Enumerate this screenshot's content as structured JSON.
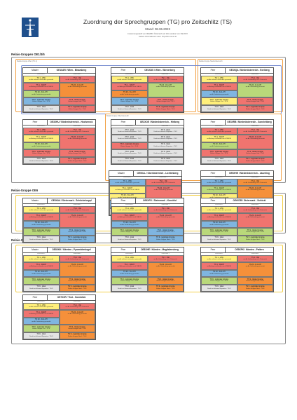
{
  "header": {
    "title": "Zuordnung der Sprechgruppen (TG) pro Zeitschlitz (TS)",
    "stand": "Stand: 08.06.2023",
    "note1": "zusammengestellt von OE6ABC Österreich auf Infos anderer von OE1XXX",
    "note2": "weitere Informationen unter: http://dmr.oevsv.at"
  },
  "colors": {
    "red": "#f0746f",
    "yellow": "#ffef7a",
    "blue": "#7fb5e0",
    "green": "#b9d87a",
    "orange": "#f5903a",
    "grey": "#e3e3e3",
    "frame_grey": "#9a9a9a",
    "frame_orange": "#f2a043",
    "frame_yellow": "#f3d04a",
    "frame_blue": "#7a8fd1"
  },
  "sections": [
    {
      "title": "Relais-Gruppen OE1/3/5"
    },
    {
      "title": "Relais-Gruppe OE6"
    },
    {
      "title": "Relais-Gruppen OE7/8"
    }
  ],
  "group_labels": [
    "Relais-Gruppe Wien (TG 1)",
    "Relais-Gruppe Niederösterreich",
    "Relais-Gruppe Oberösterreich"
  ],
  "col_labels": {
    "ts1": "Zeitschlitz 1",
    "ts2": "Zeitschlitz 2"
  },
  "slots": {
    "s_www": {
      "l1": "TS 1 - WW",
      "l2": "on-Air weltweit verbunden gesendet"
    },
    "s_dach": {
      "l1": "TS 1 - DACH",
      "l2": "auf Anfrage verbinden nach D/A/CH"
    },
    "s_oe": {
      "l1": "TS 1 - OE",
      "l2": "on-Air Verbindung nach Österreich"
    },
    "s_dach20": {
      "l1": "TS 20 - D-A-CH",
      "l2": "on-Air Verbindung gesendet"
    },
    "s_lokal": {
      "l1": "TS 9 - lokal",
      "l2": "Direkt auf diesem Repeater - TG 9"
    },
    "s_reg": {
      "l1": "TS 9 - regionale Gruppe",
      "l2": "Relais-Gruppe Ost - TG 8"
    },
    "s_lokal2": {
      "l1": "TS 9 - lokale Gruppe",
      "l2": "Relais-Gruppe Süd - TG 8"
    },
    "s_reg2": {
      "l1": "TS 9 - regionale Gruppe",
      "l2": "Relais-Gruppe Nord - TG 8"
    }
  },
  "cards": [
    {
      "role": "Master",
      "call": "OE1XAR / Wien - Bisamberg"
    },
    {
      "role": "Peer",
      "call": "OE1XDS / Wien - Wienerberg"
    },
    {
      "role": "Peer",
      "call": "OE3XQA / Niederösterreich - Exelberg"
    },
    {
      "role": "Peer",
      "call": "OE3XHU / Niederösterreich - Hocheneck"
    },
    {
      "role": "Peer",
      "call": "OE3XOE / Niederösterreich - Hirtberg"
    },
    {
      "role": "Peer",
      "call": "OE3XRB / Niederösterreich - Sonnleitberg"
    },
    {
      "role": "Master",
      "call": "OE5XLL / Oberösterreich - Lichtenberg"
    },
    {
      "role": "Peer",
      "call": "OE5XHE / Niederösterreich - Jauerling"
    },
    {
      "role": "Master",
      "call": "OE6XAA / Steiermark - Schöckelsoppl"
    },
    {
      "role": "Peer",
      "call": "OE6XFG / Steiermark - Kornfeld"
    },
    {
      "role": "Peer",
      "call": "OE6XZB / Steiermark - Schöckl"
    },
    {
      "role": "Master",
      "call": "OE8XKK / Kärnten - Pyramidenkogel"
    },
    {
      "role": "Peer",
      "call": "OE8XHE / Kärnten - Magdalensberg"
    },
    {
      "role": "Peer",
      "call": "OE8XPK / Kärnten - Pattern"
    },
    {
      "role": "Peer",
      "call": "OE7XXR / Tirol - Sonnblick"
    }
  ]
}
